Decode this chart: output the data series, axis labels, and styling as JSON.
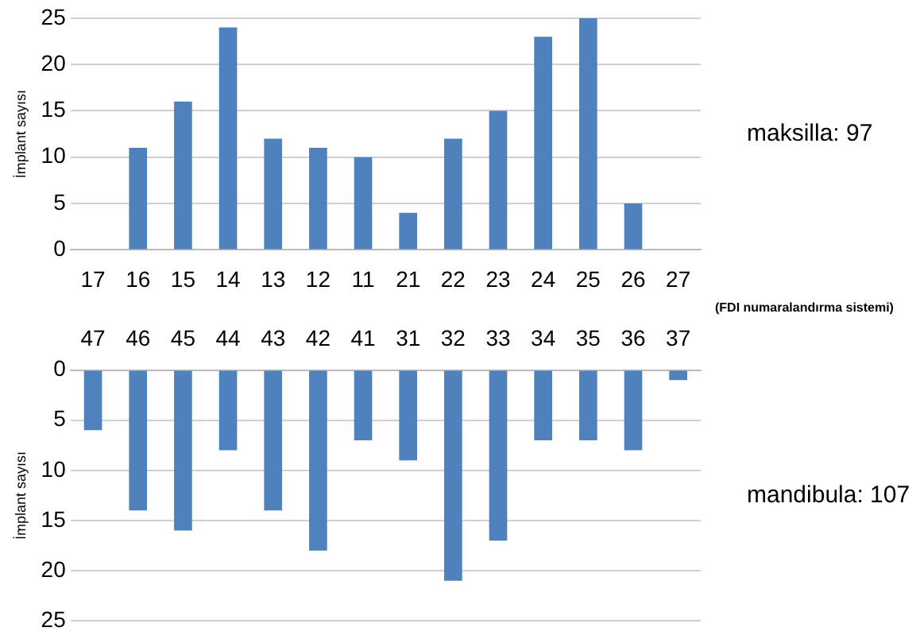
{
  "chart_data": [
    {
      "type": "bar",
      "ylabel": "İmplant sayısı",
      "categories": [
        "17",
        "16",
        "15",
        "14",
        "13",
        "12",
        "11",
        "21",
        "22",
        "23",
        "24",
        "25",
        "26",
        "27"
      ],
      "values": [
        0,
        11,
        16,
        24,
        12,
        11,
        10,
        4,
        12,
        15,
        23,
        25,
        5,
        0
      ],
      "color": "#4f81bd",
      "ylim": [
        0,
        25
      ],
      "yticks": [
        0,
        5,
        10,
        15,
        20,
        25
      ],
      "grid": "y",
      "annotations": [
        "maksilla: 97",
        "(FDI numaralandırma sistemi)"
      ]
    },
    {
      "type": "bar",
      "ylabel": "İmplant sayısı",
      "categories": [
        "47",
        "46",
        "45",
        "44",
        "43",
        "42",
        "41",
        "31",
        "32",
        "33",
        "34",
        "35",
        "36",
        "37"
      ],
      "values": [
        6,
        14,
        16,
        8,
        14,
        18,
        7,
        9,
        21,
        17,
        7,
        7,
        8,
        1
      ],
      "color": "#4f81bd",
      "ylim": [
        25,
        0
      ],
      "yticks": [
        0,
        5,
        10,
        15,
        20,
        25
      ],
      "grid": "y",
      "annotations": [
        "mandibula: 107"
      ]
    }
  ]
}
